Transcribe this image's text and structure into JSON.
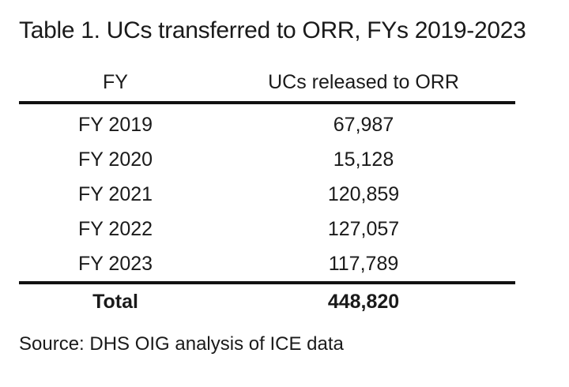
{
  "title": "Table 1. UCs transferred to ORR, FYs 2019-2023",
  "table": {
    "columns": [
      "FY",
      "UCs released to ORR"
    ],
    "rows": [
      {
        "fy": "FY 2019",
        "value": "67,987"
      },
      {
        "fy": "FY 2020",
        "value": "15,128"
      },
      {
        "fy": "FY 2021",
        "value": "120,859"
      },
      {
        "fy": "FY 2022",
        "value": "127,057"
      },
      {
        "fy": "FY 2023",
        "value": "117,789"
      }
    ],
    "total": {
      "label": "Total",
      "value": "448,820"
    }
  },
  "source": "Source: DHS OIG analysis of ICE data"
}
